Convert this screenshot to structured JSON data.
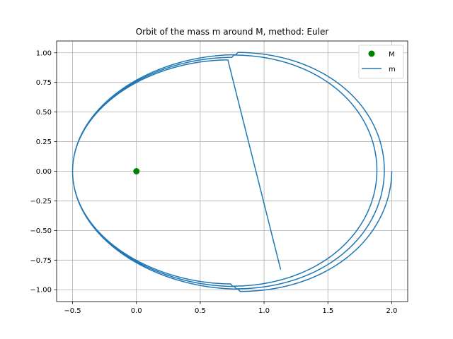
{
  "chart_data": {
    "type": "line",
    "title": "Orbit of the mass m around M, method: Euler",
    "xlabel": "",
    "ylabel": "",
    "xlim": [
      -0.625,
      2.125
    ],
    "ylim": [
      -1.1,
      1.1
    ],
    "x_ticks": [
      -0.5,
      0.0,
      0.5,
      1.0,
      1.5,
      2.0
    ],
    "x_tick_labels": [
      "−0.5",
      "0.0",
      "0.5",
      "1.0",
      "1.5",
      "2.0"
    ],
    "y_ticks": [
      -1.0,
      -0.75,
      -0.5,
      -0.25,
      0.0,
      0.25,
      0.5,
      0.75,
      1.0
    ],
    "y_tick_labels": [
      "−1.00",
      "−0.75",
      "−0.50",
      "−0.25",
      "0.00",
      "0.25",
      "0.50",
      "0.75",
      "1.00"
    ],
    "grid": true,
    "legend_position": "top-right",
    "series": [
      {
        "name": "M",
        "kind": "scatter",
        "color": "#008000",
        "points": [
          [
            0.0,
            0.0
          ]
        ]
      },
      {
        "name": "m",
        "kind": "line",
        "color": "#1f77b4",
        "orbit": {
          "start_x": 2.0,
          "start_y": 0.0,
          "end_x": 1.13,
          "end_y": -0.83,
          "periapsis_x": -0.5,
          "turns": 2.75,
          "outer_apoapsis_x": 2.0,
          "inner_apoapsis_x": 1.84,
          "outer_y_max": 1.0,
          "inner_y_max": 0.94
        }
      }
    ]
  }
}
